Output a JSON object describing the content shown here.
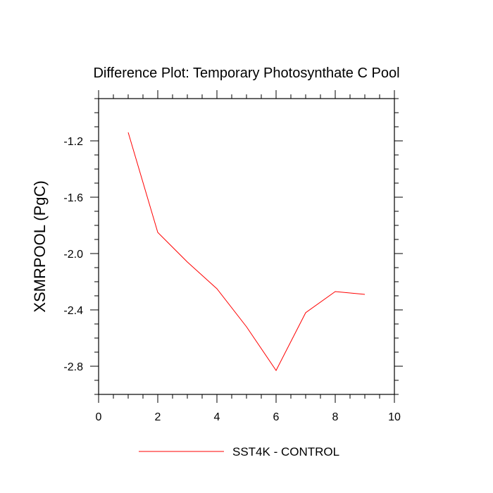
{
  "chart_data": {
    "type": "line",
    "title": "Difference Plot: Temporary Photosynthate C Pool",
    "xlabel": "",
    "ylabel": "XSMRPOOL  (PgC)",
    "xlim": [
      0,
      10
    ],
    "ylim": [
      -3.0,
      -0.9
    ],
    "xticks": [
      0,
      2,
      4,
      6,
      8,
      10
    ],
    "xtick_labels": [
      "0",
      "2",
      "4",
      "6",
      "8",
      "10"
    ],
    "yticks": [
      -2.8,
      -2.4,
      -2.0,
      -1.6,
      -1.2
    ],
    "ytick_labels": [
      "-2.8",
      "-2.4",
      "-2.0",
      "-1.6",
      "-1.2"
    ],
    "legend_position": "bottom-center",
    "grid": false,
    "series": [
      {
        "name": "SST4K - CONTROL",
        "color": "#ff0000",
        "x": [
          1,
          2,
          3,
          4,
          5,
          6,
          7,
          8,
          9
        ],
        "y": [
          -1.14,
          -1.85,
          -2.06,
          -2.25,
          -2.52,
          -2.83,
          -2.42,
          -2.27,
          -2.29
        ]
      }
    ]
  }
}
